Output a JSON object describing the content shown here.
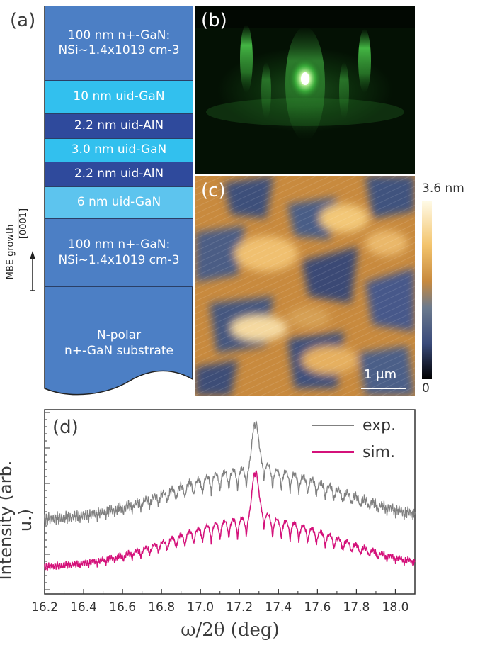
{
  "panel_a": {
    "label": "(a)",
    "layers": [
      {
        "line1": "100 nm n+-GaN:",
        "line2": "NSi~1.4x1019 cm-3",
        "color": "#4c7fc5"
      },
      {
        "line1": "10 nm uid-GaN",
        "line2": "",
        "color": "#32c0ee"
      },
      {
        "line1": "2.2 nm uid-AlN",
        "line2": "",
        "color": "#2f4a9c"
      },
      {
        "line1": "3.0 nm uid-GaN",
        "line2": "",
        "color": "#32c0ee"
      },
      {
        "line1": "2.2 nm uid-AlN",
        "line2": "",
        "color": "#2f4a9c"
      },
      {
        "line1": "6 nm uid-GaN",
        "line2": "",
        "color": "#5dc4ee"
      },
      {
        "line1": "100 nm n+-GaN:",
        "line2": "NSi~1.4x1019 cm-3",
        "color": "#4c7fc5"
      },
      {
        "line1": "N-polar",
        "line2": "n+-GaN substrate",
        "color": "#4c7fc5"
      }
    ],
    "growth_label": "MBE growth",
    "direction_label": "[0001]"
  },
  "panel_b": {
    "label": "(b)"
  },
  "panel_c": {
    "label": "(c)",
    "colorbar_max": "3.6 nm",
    "colorbar_min": "0",
    "scalebar": "1 μm"
  },
  "chart_data": {
    "type": "line",
    "label": "(d)",
    "xlabel": "ω/2θ (deg)",
    "ylabel": "Intensity (arb. u.)",
    "xlim": [
      16.2,
      18.1
    ],
    "xticks": [
      "16.2",
      "16.4",
      "16.6",
      "16.8",
      "17.0",
      "17.2",
      "17.4",
      "17.6",
      "17.8",
      "18.0"
    ],
    "log_scale_y": true,
    "series": [
      {
        "name": "exp.",
        "color": "#808080"
      },
      {
        "name": "sim.",
        "color": "#d4117a"
      }
    ],
    "peak_x": 17.28
  }
}
